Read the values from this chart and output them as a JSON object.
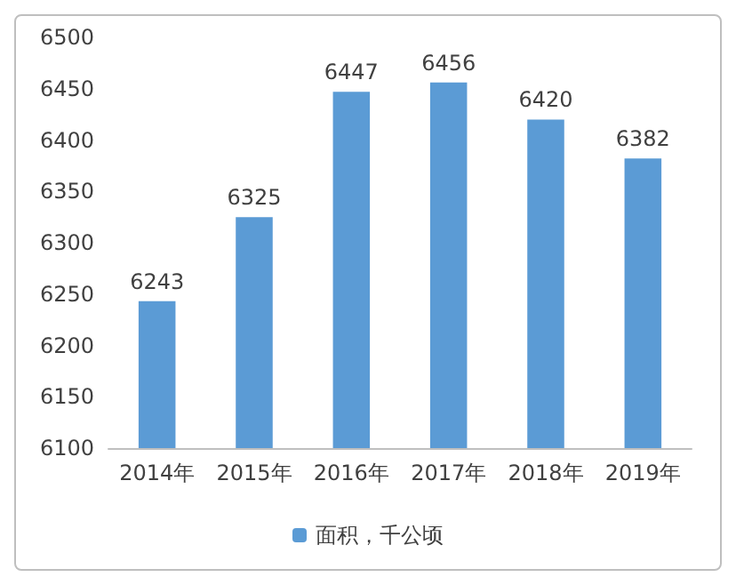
{
  "chart_data": {
    "type": "bar",
    "categories": [
      "2014年",
      "2015年",
      "2016年",
      "2017年",
      "2018年",
      "2019年"
    ],
    "series": [
      {
        "name": "面积，千公顷",
        "color": "#5b9bd5",
        "values": [
          6243,
          6325,
          6447,
          6456,
          6420,
          6382
        ]
      }
    ],
    "ylim": [
      6100,
      6500
    ],
    "yticks": [
      6100,
      6150,
      6200,
      6250,
      6300,
      6350,
      6400,
      6450,
      6500
    ],
    "grid": false,
    "legend": "bottom",
    "data_labels": true
  }
}
